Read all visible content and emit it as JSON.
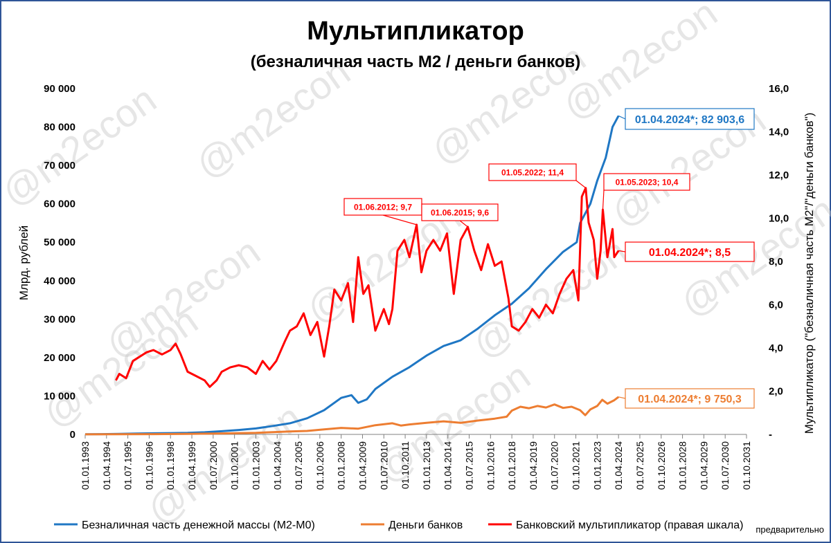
{
  "chart_data": {
    "type": "line",
    "title": "Мультипликатор",
    "subtitle": "(безналичная часть М2 / деньги банков)",
    "ylabel_left": "Млрд. рублей",
    "ylabel_right": "Мультипликатор (\"безналичная часть М2\"/\"деньги банков\")",
    "ylim_left": [
      0,
      90000
    ],
    "ylim_right": [
      0,
      16
    ],
    "left_ticks": [
      "0",
      "10 000",
      "20 000",
      "30 000",
      "40 000",
      "50 000",
      "60 000",
      "70 000",
      "80 000",
      "90 000"
    ],
    "right_ticks": [
      "-",
      "2,0",
      "4,0",
      "6,0",
      "8,0",
      "10,0",
      "12,0",
      "14,0",
      "16,0"
    ],
    "x_ticks": [
      "01.01.1993",
      "01.04.1994",
      "01.07.1995",
      "01.10.1996",
      "01.01.1998",
      "01.04.1999",
      "01.07.2000",
      "01.10.2001",
      "01.01.2003",
      "01.04.2004",
      "01.07.2005",
      "01.10.2006",
      "01.01.2008",
      "01.04.2009",
      "01.07.2010",
      "01.10.2011",
      "01.01.2013",
      "01.04.2014",
      "01.07.2015",
      "01.10.2016",
      "01.01.2018",
      "01.04.2019",
      "01.07.2020",
      "01.10.2021",
      "01.01.2023",
      "01.04.2024",
      "01.07.2025",
      "01.10.2026",
      "01.01.2028",
      "01.04.2029",
      "01.07.2030",
      "01.10.2031"
    ],
    "xlim": [
      1993.0,
      2031.75
    ],
    "series": [
      {
        "name": "Безналичная часть денежной массы (М2-М0)",
        "color": "#1f77c4",
        "axis": "left",
        "points": [
          [
            1993.0,
            30
          ],
          [
            1994.0,
            80
          ],
          [
            1995.0,
            150
          ],
          [
            1996.0,
            220
          ],
          [
            1997.0,
            290
          ],
          [
            1998.0,
            340
          ],
          [
            1999.0,
            400
          ],
          [
            2000.0,
            560
          ],
          [
            2001.0,
            820
          ],
          [
            2002.0,
            1150
          ],
          [
            2003.0,
            1550
          ],
          [
            2004.0,
            2200
          ],
          [
            2005.0,
            2900
          ],
          [
            2006.0,
            4200
          ],
          [
            2007.0,
            6300
          ],
          [
            2008.0,
            9500
          ],
          [
            2008.6,
            10200
          ],
          [
            2009.0,
            8200
          ],
          [
            2009.5,
            9100
          ],
          [
            2010.0,
            11800
          ],
          [
            2011.0,
            15000
          ],
          [
            2012.0,
            17500
          ],
          [
            2012.5,
            19000
          ],
          [
            2013.0,
            20500
          ],
          [
            2014.0,
            23000
          ],
          [
            2015.0,
            24500
          ],
          [
            2016.0,
            27500
          ],
          [
            2017.0,
            31000
          ],
          [
            2018.0,
            34000
          ],
          [
            2019.0,
            38000
          ],
          [
            2020.0,
            43000
          ],
          [
            2021.0,
            47500
          ],
          [
            2021.8,
            50000
          ],
          [
            2022.0,
            55000
          ],
          [
            2022.6,
            60000
          ],
          [
            2023.0,
            66000
          ],
          [
            2023.5,
            72000
          ],
          [
            2023.9,
            80000
          ],
          [
            2024.25,
            82903.6
          ]
        ]
      },
      {
        "name": "Деньги банков",
        "color": "#ed7d31",
        "axis": "left",
        "points": [
          [
            1993.0,
            10
          ],
          [
            1995.0,
            40
          ],
          [
            1997.0,
            70
          ],
          [
            1999.0,
            120
          ],
          [
            2001.0,
            260
          ],
          [
            2003.0,
            420
          ],
          [
            2004.0,
            600
          ],
          [
            2005.0,
            750
          ],
          [
            2006.0,
            900
          ],
          [
            2007.0,
            1300
          ],
          [
            2008.0,
            1700
          ],
          [
            2009.0,
            1500
          ],
          [
            2010.0,
            2400
          ],
          [
            2011.0,
            2900
          ],
          [
            2011.5,
            2300
          ],
          [
            2012.0,
            2600
          ],
          [
            2013.0,
            3000
          ],
          [
            2014.0,
            3400
          ],
          [
            2015.0,
            3000
          ],
          [
            2016.0,
            3600
          ],
          [
            2017.0,
            4100
          ],
          [
            2017.7,
            4600
          ],
          [
            2018.0,
            6200
          ],
          [
            2018.5,
            7200
          ],
          [
            2019.0,
            6800
          ],
          [
            2019.5,
            7400
          ],
          [
            2020.0,
            7000
          ],
          [
            2020.5,
            7800
          ],
          [
            2021.0,
            6900
          ],
          [
            2021.5,
            7200
          ],
          [
            2022.0,
            6300
          ],
          [
            2022.3,
            5000
          ],
          [
            2022.6,
            6500
          ],
          [
            2023.0,
            7400
          ],
          [
            2023.3,
            9000
          ],
          [
            2023.6,
            8000
          ],
          [
            2024.0,
            8900
          ],
          [
            2024.25,
            9750.3
          ]
        ]
      },
      {
        "name": "Банковский мультипликатор (правая шкала)",
        "color": "#ff0000",
        "axis": "right",
        "points": [
          [
            1994.8,
            2.5
          ],
          [
            1995.0,
            2.8
          ],
          [
            1995.4,
            2.6
          ],
          [
            1995.8,
            3.4
          ],
          [
            1996.2,
            3.6
          ],
          [
            1996.6,
            3.8
          ],
          [
            1997.0,
            3.9
          ],
          [
            1997.5,
            3.7
          ],
          [
            1998.0,
            3.9
          ],
          [
            1998.3,
            4.2
          ],
          [
            1998.6,
            3.7
          ],
          [
            1999.0,
            2.9
          ],
          [
            1999.5,
            2.7
          ],
          [
            2000.0,
            2.5
          ],
          [
            2000.3,
            2.2
          ],
          [
            2000.7,
            2.5
          ],
          [
            2001.0,
            2.9
          ],
          [
            2001.5,
            3.1
          ],
          [
            2002.0,
            3.2
          ],
          [
            2002.5,
            3.1
          ],
          [
            2003.0,
            2.8
          ],
          [
            2003.4,
            3.4
          ],
          [
            2003.8,
            3.0
          ],
          [
            2004.2,
            3.4
          ],
          [
            2004.7,
            4.3
          ],
          [
            2005.0,
            4.8
          ],
          [
            2005.4,
            5.0
          ],
          [
            2005.8,
            5.6
          ],
          [
            2006.2,
            4.6
          ],
          [
            2006.6,
            5.2
          ],
          [
            2007.0,
            3.6
          ],
          [
            2007.3,
            5.0
          ],
          [
            2007.6,
            6.7
          ],
          [
            2008.0,
            6.2
          ],
          [
            2008.4,
            7.0
          ],
          [
            2008.7,
            5.2
          ],
          [
            2009.0,
            8.2
          ],
          [
            2009.3,
            6.5
          ],
          [
            2009.6,
            6.9
          ],
          [
            2010.0,
            4.8
          ],
          [
            2010.5,
            5.8
          ],
          [
            2010.8,
            5.1
          ],
          [
            2011.0,
            5.8
          ],
          [
            2011.3,
            8.5
          ],
          [
            2011.7,
            9.0
          ],
          [
            2012.0,
            8.2
          ],
          [
            2012.42,
            9.7
          ],
          [
            2012.7,
            7.5
          ],
          [
            2013.0,
            8.5
          ],
          [
            2013.4,
            9.0
          ],
          [
            2013.8,
            8.5
          ],
          [
            2014.2,
            9.3
          ],
          [
            2014.6,
            6.5
          ],
          [
            2015.0,
            9.0
          ],
          [
            2015.42,
            9.6
          ],
          [
            2015.8,
            8.5
          ],
          [
            2016.2,
            7.6
          ],
          [
            2016.6,
            8.8
          ],
          [
            2017.0,
            7.8
          ],
          [
            2017.4,
            8.0
          ],
          [
            2017.8,
            6.3
          ],
          [
            2018.0,
            5.0
          ],
          [
            2018.4,
            4.8
          ],
          [
            2018.8,
            5.2
          ],
          [
            2019.2,
            5.8
          ],
          [
            2019.6,
            5.4
          ],
          [
            2020.0,
            6.0
          ],
          [
            2020.4,
            5.6
          ],
          [
            2020.8,
            6.5
          ],
          [
            2021.2,
            7.2
          ],
          [
            2021.6,
            7.6
          ],
          [
            2021.9,
            6.2
          ],
          [
            2022.1,
            11.0
          ],
          [
            2022.33,
            11.4
          ],
          [
            2022.5,
            9.8
          ],
          [
            2022.8,
            9.0
          ],
          [
            2023.0,
            7.2
          ],
          [
            2023.2,
            8.5
          ],
          [
            2023.33,
            10.4
          ],
          [
            2023.6,
            8.2
          ],
          [
            2023.9,
            9.5
          ],
          [
            2024.0,
            8.2
          ],
          [
            2024.25,
            8.5
          ]
        ]
      }
    ],
    "annotations": [
      {
        "label": "01.04.2024*;  82 903,6",
        "color": "#1f77c4"
      },
      {
        "label": "01.04.2024*;  9 750,3",
        "color": "#ed7d31"
      },
      {
        "label": "01.04.2024*;   8,5",
        "color": "#ff0000"
      },
      {
        "label": "01.05.2022;  11,4",
        "color": "#ff0000"
      },
      {
        "label": "01.05.2023;  10,4",
        "color": "#ff0000"
      },
      {
        "label": "01.06.2012;  9,7",
        "color": "#ff0000"
      },
      {
        "label": "01.06.2015;  9,6",
        "color": "#ff0000"
      }
    ],
    "legend": [
      {
        "label": "Безналичная часть денежной массы (М2-М0)",
        "color": "#1f77c4"
      },
      {
        "label": "Деньги банков",
        "color": "#ed7d31"
      },
      {
        "label": "Банковский мультипликатор (правая шкала)",
        "color": "#ff0000"
      }
    ],
    "watermark": "@m2econ",
    "footnote": "предварительно"
  }
}
